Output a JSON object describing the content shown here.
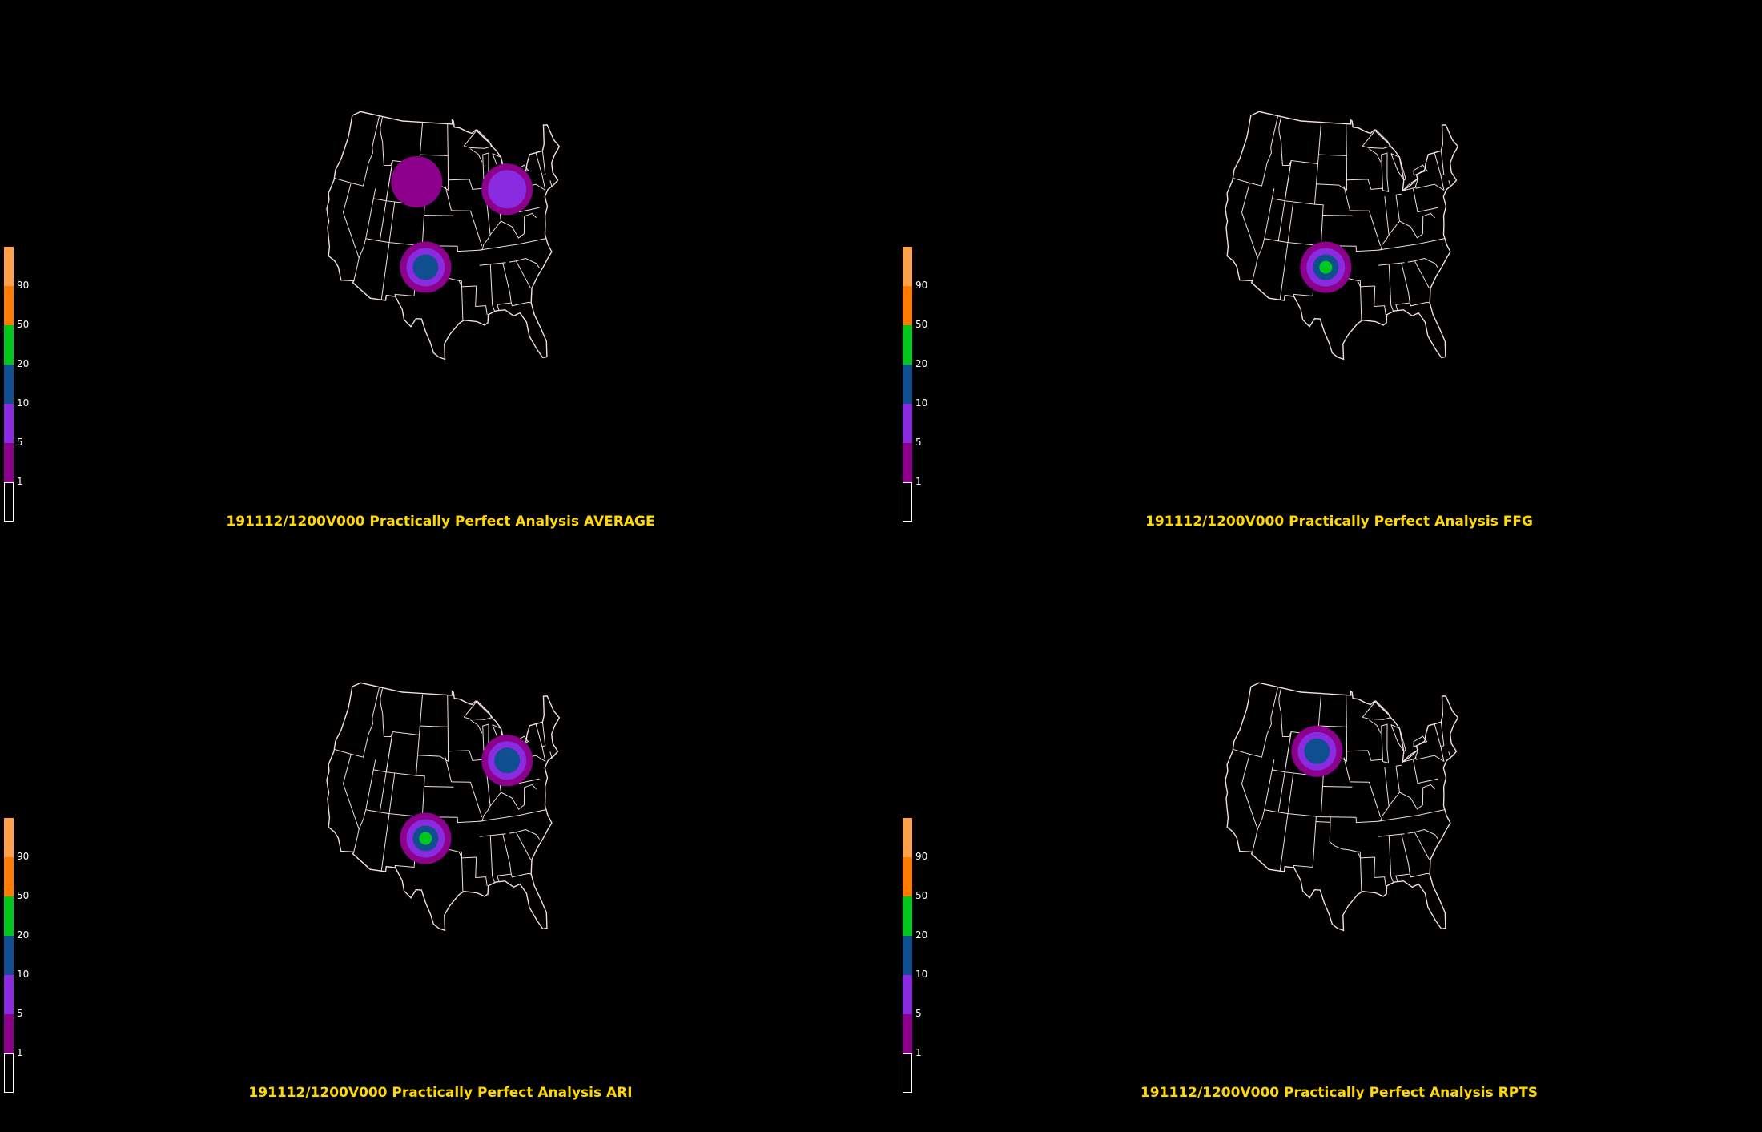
{
  "colorbar": {
    "labels": [
      "90",
      "50",
      "20",
      "10",
      "5",
      "1"
    ],
    "colors": [
      "#ffa04a",
      "#ff7c00",
      "#00c81c",
      "#0f4f8f",
      "#8a2be2",
      "#8c008c",
      "#000000"
    ]
  },
  "panels": [
    {
      "title": "191112/1200V000 Practically Perfect Analysis AVERAGE",
      "features": [
        {
          "lon": -104.3,
          "lat": 43.2,
          "rings": [
            "#8c008c"
          ]
        },
        {
          "lon": -82.3,
          "lat": 42.1,
          "rings": [
            "#8c008c",
            "#8a2be2"
          ]
        },
        {
          "lon": -101.1,
          "lat": 34.9,
          "rings": [
            "#8c008c",
            "#8a2be2",
            "#0f4f8f"
          ]
        }
      ]
    },
    {
      "title": "191112/1200V000 Practically Perfect Analysis FFG",
      "features": [
        {
          "lon": -100.8,
          "lat": 34.9,
          "rings": [
            "#8c008c",
            "#8a2be2",
            "#0f4f8f",
            "#00c81c"
          ]
        }
      ]
    },
    {
      "title": "191112/1200V000 Practically Perfect Analysis ARI",
      "features": [
        {
          "lon": -82.3,
          "lat": 42.1,
          "rings": [
            "#8c008c",
            "#8a2be2",
            "#0f4f8f"
          ]
        },
        {
          "lon": -101.1,
          "lat": 34.9,
          "rings": [
            "#8c008c",
            "#8a2be2",
            "#0f4f8f",
            "#00c81c"
          ]
        }
      ]
    },
    {
      "title": "191112/1200V000 Practically Perfect Analysis RPTS",
      "features": [
        {
          "lon": -103.9,
          "lat": 43.4,
          "rings": [
            "#8c008c",
            "#8a2be2",
            "#0f4f8f"
          ]
        }
      ]
    }
  ]
}
